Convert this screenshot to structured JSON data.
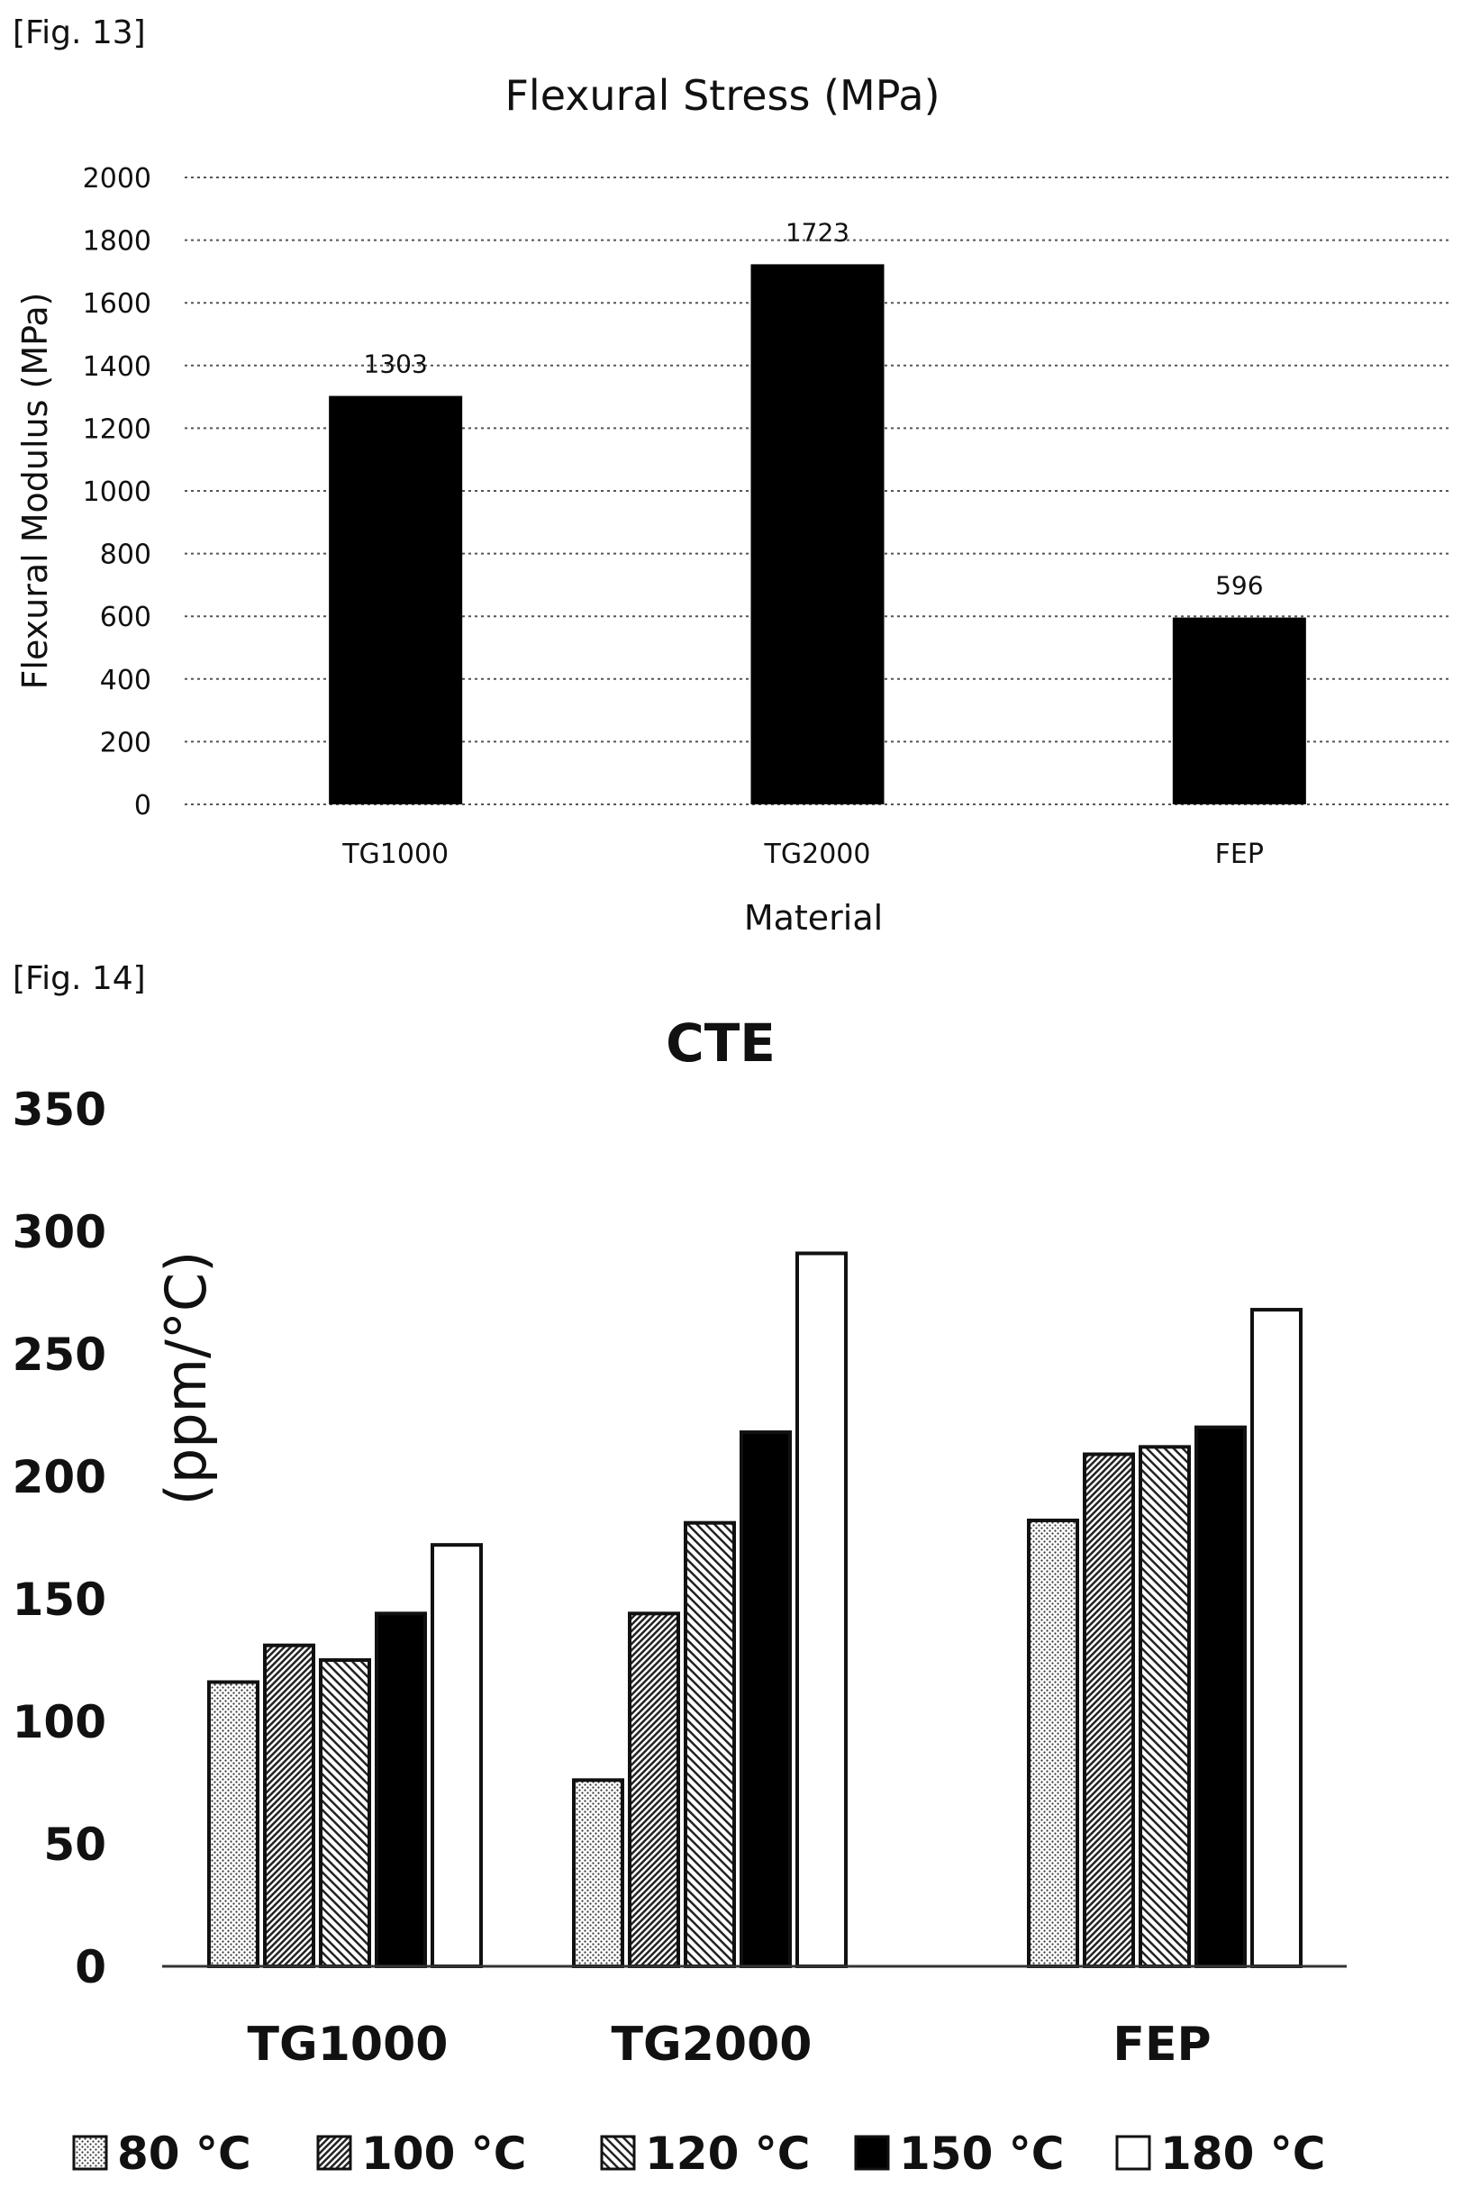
{
  "figures": {
    "fig13_label": "[Fig. 13]",
    "fig14_label": "[Fig. 14]"
  },
  "chart_data": [
    {
      "type": "bar",
      "title": "Flexural Stress (MPa)",
      "xlabel": "Material",
      "ylabel": "Flexural Modulus (MPa)",
      "categories": [
        "TG1000",
        "TG2000",
        "FEP"
      ],
      "values": [
        1303,
        1723,
        596
      ],
      "data_labels": [
        "1303",
        "1723",
        "596"
      ],
      "ylim": [
        0,
        2000
      ],
      "yticks": [
        "0",
        "200",
        "400",
        "600",
        "800",
        "1000",
        "1200",
        "1400",
        "1600",
        "1800",
        "2000"
      ],
      "grid": true,
      "bar_color": "#000000"
    },
    {
      "type": "bar",
      "title": "CTE",
      "xlabel": "",
      "ylabel": "(ppm/°C)",
      "categories": [
        "TG1000",
        "TG2000",
        "FEP"
      ],
      "series": [
        {
          "name": "80 °C",
          "values": [
            116,
            76,
            182
          ],
          "pattern": "dots"
        },
        {
          "name": "100 °C",
          "values": [
            131,
            144,
            209
          ],
          "pattern": "dense-diagonal"
        },
        {
          "name": "120 °C",
          "values": [
            125,
            181,
            212
          ],
          "pattern": "diagonal"
        },
        {
          "name": "150 °C",
          "values": [
            144,
            218,
            220
          ],
          "pattern": "solid-black"
        },
        {
          "name": "180 °C",
          "values": [
            172,
            291,
            268
          ],
          "pattern": "white"
        }
      ],
      "ylim": [
        0,
        350
      ],
      "yticks": [
        "0",
        "50",
        "100",
        "150",
        "200",
        "250",
        "300",
        "350"
      ],
      "grid": false,
      "legend_position": "bottom"
    }
  ]
}
